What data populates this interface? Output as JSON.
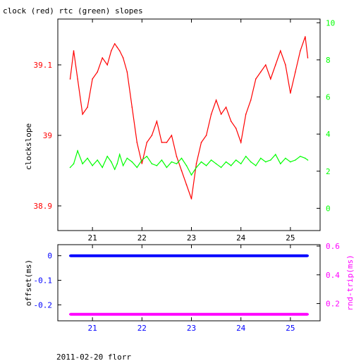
{
  "footer": "2011-02-20 florr",
  "colors": {
    "clock": "#ff0000",
    "rtc": "#00ff00",
    "offset": "#0000ff",
    "roundtrip": "#ff00ff",
    "axis": "#000000"
  },
  "chart_data": [
    {
      "type": "line",
      "title": "clock (red) rtc (green) slopes",
      "xlabel": "",
      "ylabel": "clockslope",
      "y2label": "",
      "xlim": [
        20.3,
        25.6
      ],
      "ylim": [
        38.865,
        39.165
      ],
      "y2lim": [
        -1.2,
        10.2
      ],
      "xticks": [
        "21",
        "22",
        "23",
        "24",
        "25"
      ],
      "yticks": [
        "38.9",
        "39",
        "39.1"
      ],
      "y2ticks": [
        "0",
        "2",
        "4",
        "6",
        "8",
        "10"
      ],
      "grid": false,
      "series": [
        {
          "name": "clock",
          "axis": "left",
          "x": [
            20.55,
            20.62,
            20.7,
            20.8,
            20.9,
            21.0,
            21.1,
            21.2,
            21.3,
            21.38,
            21.45,
            21.5,
            21.55,
            21.62,
            21.7,
            21.8,
            21.9,
            22.0,
            22.1,
            22.2,
            22.3,
            22.4,
            22.5,
            22.6,
            22.7,
            22.8,
            22.9,
            23.0,
            23.1,
            23.2,
            23.3,
            23.4,
            23.5,
            23.6,
            23.7,
            23.8,
            23.9,
            24.0,
            24.1,
            24.2,
            24.3,
            24.4,
            24.5,
            24.6,
            24.7,
            24.8,
            24.9,
            25.0,
            25.1,
            25.2,
            25.3,
            25.35
          ],
          "y": [
            39.08,
            39.12,
            39.08,
            39.03,
            39.04,
            39.08,
            39.09,
            39.11,
            39.1,
            39.12,
            39.13,
            39.125,
            39.12,
            39.11,
            39.09,
            39.04,
            38.99,
            38.96,
            38.99,
            39.0,
            39.02,
            38.99,
            38.99,
            39.0,
            38.97,
            38.95,
            38.93,
            38.91,
            38.96,
            38.99,
            39.0,
            39.03,
            39.05,
            39.03,
            39.04,
            39.02,
            39.01,
            38.99,
            39.03,
            39.05,
            39.08,
            39.09,
            39.1,
            39.08,
            39.1,
            39.12,
            39.1,
            39.06,
            39.09,
            39.12,
            39.14,
            39.11
          ]
        },
        {
          "name": "rtc",
          "axis": "right",
          "x": [
            20.55,
            20.62,
            20.7,
            20.8,
            20.9,
            21.0,
            21.1,
            21.2,
            21.3,
            21.38,
            21.45,
            21.5,
            21.55,
            21.62,
            21.7,
            21.8,
            21.9,
            22.0,
            22.1,
            22.2,
            22.3,
            22.4,
            22.5,
            22.6,
            22.7,
            22.8,
            22.9,
            23.0,
            23.1,
            23.2,
            23.3,
            23.4,
            23.5,
            23.6,
            23.7,
            23.8,
            23.9,
            24.0,
            24.1,
            24.2,
            24.3,
            24.4,
            24.5,
            24.6,
            24.7,
            24.8,
            24.9,
            25.0,
            25.1,
            25.2,
            25.3,
            25.35
          ],
          "y": [
            2.2,
            2.4,
            3.1,
            2.4,
            2.7,
            2.3,
            2.6,
            2.2,
            2.8,
            2.5,
            2.1,
            2.4,
            2.9,
            2.3,
            2.7,
            2.5,
            2.2,
            2.6,
            2.8,
            2.4,
            2.3,
            2.6,
            2.2,
            2.5,
            2.4,
            2.7,
            2.3,
            1.8,
            2.2,
            2.5,
            2.3,
            2.6,
            2.4,
            2.2,
            2.5,
            2.3,
            2.6,
            2.4,
            2.8,
            2.5,
            2.3,
            2.7,
            2.5,
            2.6,
            2.9,
            2.4,
            2.7,
            2.5,
            2.6,
            2.8,
            2.7,
            2.6
          ]
        }
      ]
    },
    {
      "type": "scatter",
      "title": "",
      "xlabel": "",
      "ylabel": "offset(ms)",
      "y2label": "rnd-trip(ms)",
      "xlim": [
        20.3,
        25.6
      ],
      "ylim": [
        -0.265,
        0.045
      ],
      "y2lim": [
        0.08,
        0.61
      ],
      "xticks": [
        "21",
        "22",
        "23",
        "24",
        "25"
      ],
      "yticks": [
        "0",
        "-0.1",
        "-0.2"
      ],
      "y2ticks": [
        "0.2",
        "0.4",
        "0.6"
      ],
      "grid": false,
      "series": [
        {
          "name": "offset",
          "axis": "left",
          "x": [
            20.55,
            20.8,
            21.05,
            21.3,
            21.55,
            21.8,
            22.05,
            22.3,
            22.55,
            22.8,
            23.05,
            23.3,
            23.55,
            23.8,
            24.05,
            24.3,
            24.55,
            24.8,
            25.05,
            25.35
          ],
          "y": [
            0.0,
            0.0,
            0.0,
            0.0,
            0.0,
            0.0,
            0.0,
            0.0,
            0.0,
            0.0,
            0.0,
            0.0,
            0.0,
            0.0,
            0.0,
            0.0,
            0.0,
            0.0,
            0.0,
            0.0
          ]
        },
        {
          "name": "roundtrip",
          "axis": "right",
          "x": [
            20.55,
            20.8,
            21.05,
            21.3,
            21.55,
            21.8,
            22.05,
            22.3,
            22.55,
            22.8,
            23.05,
            23.3,
            23.55,
            23.8,
            24.05,
            24.3,
            24.55,
            24.8,
            25.05,
            25.35
          ],
          "y": [
            0.125,
            0.125,
            0.125,
            0.125,
            0.125,
            0.125,
            0.125,
            0.125,
            0.125,
            0.125,
            0.125,
            0.125,
            0.125,
            0.125,
            0.125,
            0.125,
            0.125,
            0.125,
            0.125,
            0.125
          ]
        }
      ]
    }
  ]
}
